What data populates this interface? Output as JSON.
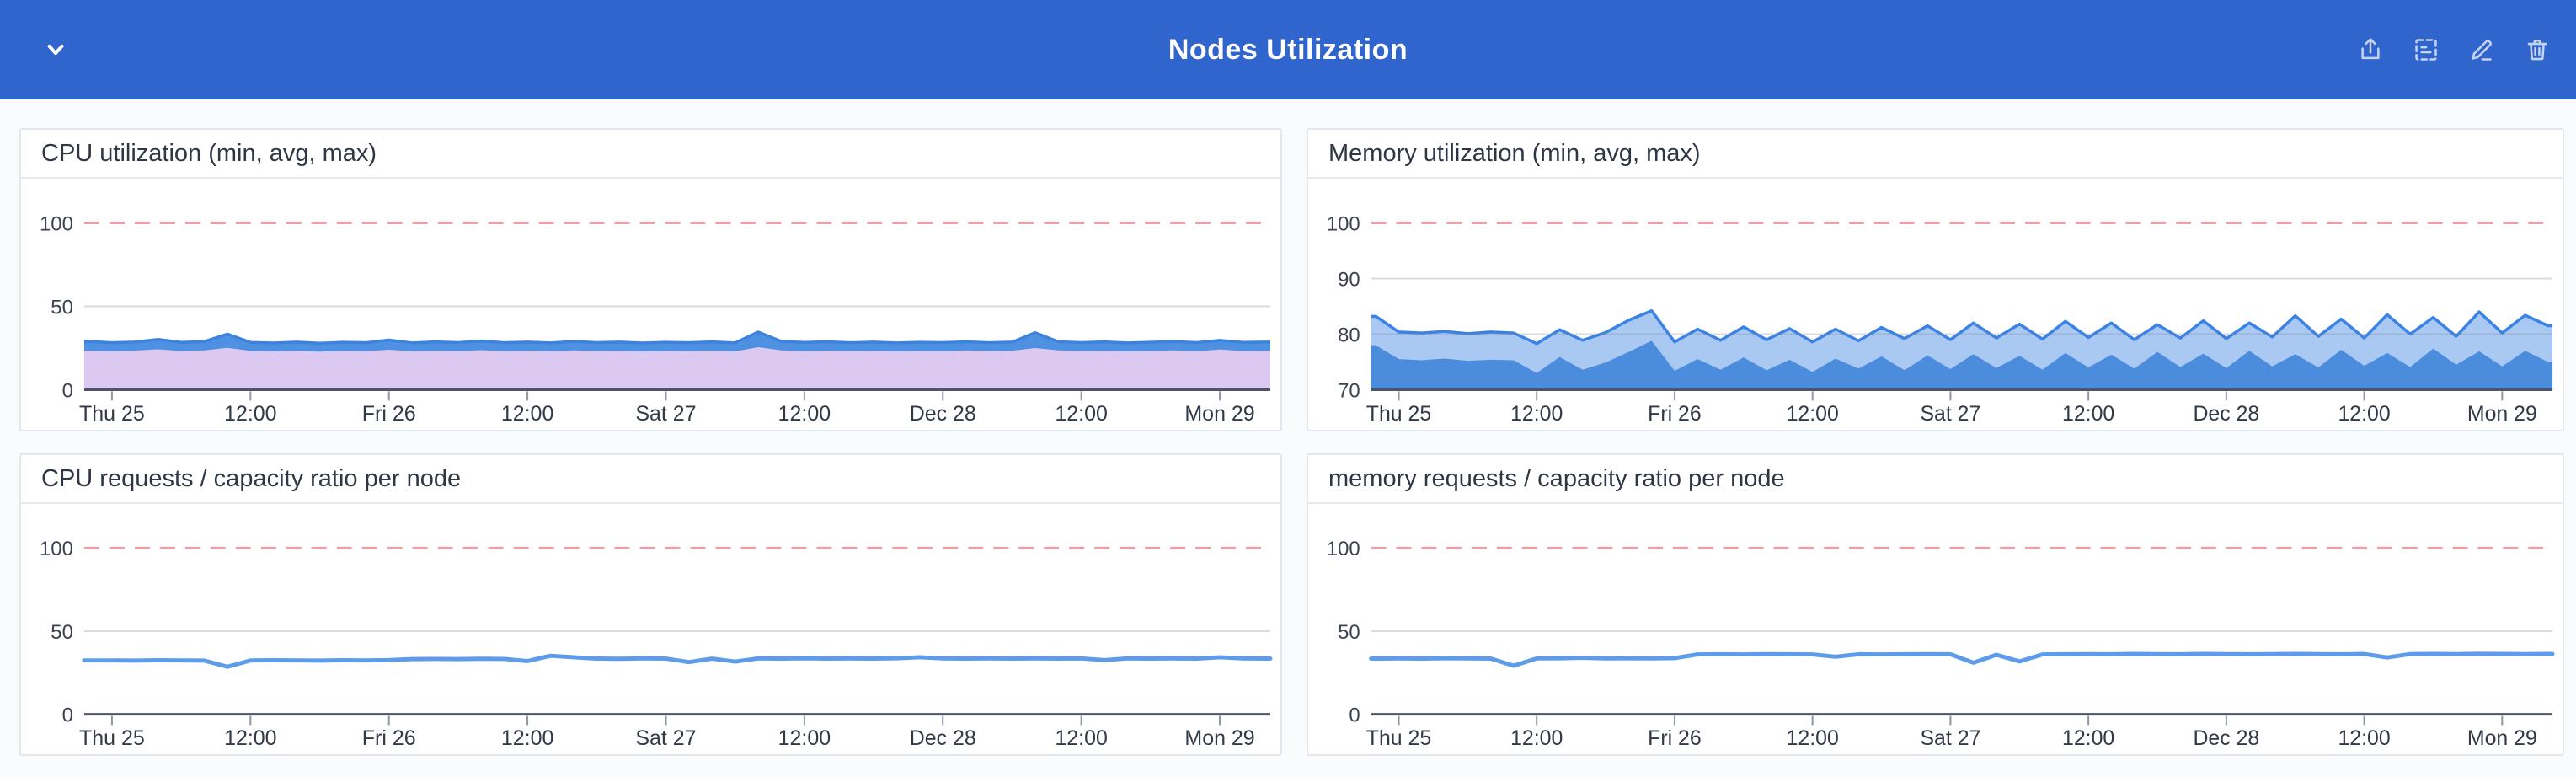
{
  "page": {
    "background": "#fafbfd"
  },
  "header": {
    "title": "Nodes Utilization",
    "background": "#3065cd",
    "icon_color": "#c6d2ee",
    "collapse_icon": "chevron-down-icon",
    "action_icons": [
      "share-icon",
      "card-view-icon",
      "edit-icon",
      "trash-icon"
    ]
  },
  "chart_data": {
    "x_hours": [
      -2,
      0,
      2,
      4,
      6,
      8,
      10,
      12,
      14,
      16,
      18,
      20,
      22,
      24,
      26,
      28,
      30,
      32,
      34,
      36,
      38,
      40,
      42,
      44,
      46,
      48,
      50,
      52,
      54,
      56,
      58,
      60,
      62,
      64,
      66,
      68,
      70,
      72,
      74,
      76,
      78,
      80,
      82,
      84,
      86,
      88,
      90,
      92,
      94,
      96,
      98,
      100
    ],
    "x_tick_labels": [
      "Thu 25",
      "12:00",
      "Fri 26",
      "12:00",
      "Sat 27",
      "12:00",
      "Dec 28",
      "12:00",
      "Mon 29"
    ],
    "x_tick_hours": [
      0,
      12,
      24,
      36,
      48,
      60,
      72,
      84,
      96
    ],
    "charts": [
      {
        "type": "area",
        "title": "CPU utilization (min, avg, max)",
        "y_min": 0,
        "y_max": 100,
        "y_tick_labels": [
          0,
          50,
          100
        ],
        "grid_ticks": [
          50
        ],
        "threshold": 100,
        "threshold_color": "#ef9ea8",
        "colors": {
          "band_fill": "#4e91e3",
          "band_stroke": "#3c83de",
          "min_fill": "#dcc9f2"
        },
        "series": [
          {
            "name": "min",
            "values": [
              23.4,
              23.1,
              23.5,
              24.2,
              23.2,
              23.6,
              25.1,
              23.3,
              23.0,
              23.4,
              22.8,
              23.3,
              23.1,
              24.0,
              23.0,
              23.4,
              23.2,
              23.7,
              23.1,
              23.5,
              23.0,
              23.6,
              23.2,
              23.4,
              22.9,
              23.3,
              23.1,
              23.5,
              23.0,
              25.5,
              23.6,
              23.1,
              23.5,
              23.2,
              23.4,
              23.0,
              23.3,
              23.1,
              23.6,
              23.2,
              23.4,
              25.0,
              23.6,
              23.2,
              23.4,
              23.0,
              23.3,
              23.6,
              23.1,
              24.1,
              23.2,
              23.4
            ]
          },
          {
            "name": "avg",
            "values": [
              26.2,
              25.7,
              26.1,
              27.2,
              25.8,
              26.3,
              29.3,
              25.9,
              25.5,
              26.0,
              25.4,
              25.9,
              25.7,
              26.9,
              25.6,
              26.1,
              25.8,
              26.5,
              25.7,
              26.1,
              25.6,
              26.3,
              25.8,
              26.0,
              25.5,
              25.9,
              25.7,
              26.1,
              25.6,
              30.1,
              26.3,
              25.8,
              26.2,
              25.7,
              26.0,
              25.6,
              25.9,
              25.7,
              26.2,
              25.7,
              26.0,
              29.6,
              26.2,
              25.8,
              26.1,
              25.6,
              25.9,
              26.3,
              25.7,
              26.9,
              25.8,
              26.0
            ]
          },
          {
            "name": "max",
            "values": [
              29.0,
              28.2,
              28.6,
              30.2,
              28.4,
              28.9,
              33.4,
              28.4,
              28.0,
              28.6,
              27.9,
              28.5,
              28.2,
              29.8,
              28.1,
              28.7,
              28.3,
              29.2,
              28.2,
              28.6,
              28.1,
              29.0,
              28.3,
              28.6,
              28.0,
              28.5,
              28.2,
              28.7,
              28.1,
              34.6,
              29.0,
              28.4,
              28.8,
              28.2,
              28.6,
              28.1,
              28.5,
              28.3,
              28.8,
              28.2,
              28.6,
              34.2,
              28.8,
              28.3,
              28.7,
              28.1,
              28.5,
              28.9,
              28.3,
              29.6,
              28.4,
              28.6
            ]
          }
        ]
      },
      {
        "type": "area",
        "title": "Memory utilization (min, avg, max)",
        "y_min": 70,
        "y_max": 100,
        "y_tick_labels": [
          70,
          80,
          90,
          100
        ],
        "grid_ticks": [
          80,
          90
        ],
        "threshold": 100,
        "threshold_color": "#ef9ea8",
        "colors": {
          "band_fill": "#a9c9f3",
          "band_stroke": "#3a82e6",
          "min_fill": "#4c8cdc"
        },
        "series": [
          {
            "name": "min",
            "values": [
              78.0,
              75.5,
              75.3,
              75.6,
              75.2,
              75.4,
              75.3,
              73.0,
              75.9,
              73.6,
              74.9,
              76.8,
              78.8,
              73.4,
              75.5,
              73.6,
              75.8,
              73.5,
              75.4,
              73.2,
              75.6,
              73.8,
              76.0,
              73.5,
              76.2,
              73.7,
              76.4,
              73.9,
              76.1,
              73.6,
              76.6,
              74.0,
              76.3,
              73.8,
              76.8,
              74.1,
              76.5,
              73.9,
              77.0,
              74.2,
              76.4,
              74.0,
              77.2,
              74.3,
              76.6,
              74.1,
              77.4,
              74.5,
              76.9,
              74.2,
              77.0,
              75.0
            ]
          },
          {
            "name": "avg",
            "values": [
              80.6,
              78.0,
              77.8,
              78.1,
              77.7,
              77.9,
              77.8,
              75.7,
              78.4,
              76.3,
              77.6,
              79.7,
              81.5,
              76.0,
              78.2,
              76.3,
              78.6,
              76.3,
              78.2,
              75.9,
              78.3,
              76.3,
              78.6,
              76.4,
              78.9,
              76.4,
              79.2,
              76.6,
              79.0,
              76.4,
              79.5,
              76.7,
              79.2,
              76.4,
              79.3,
              76.7,
              79.5,
              76.6,
              79.5,
              76.9,
              79.9,
              76.8,
              80.0,
              76.8,
              80.1,
              77.1,
              80.2,
              77.1,
              80.5,
              77.2,
              80.2,
              78.3
            ]
          },
          {
            "name": "max",
            "values": [
              83.2,
              80.4,
              80.2,
              80.5,
              80.1,
              80.4,
              80.2,
              78.3,
              80.8,
              78.9,
              80.3,
              82.5,
              84.2,
              78.6,
              80.9,
              78.9,
              81.3,
              79.0,
              81.0,
              78.6,
              80.9,
              78.8,
              81.2,
              79.2,
              81.5,
              79.0,
              82.0,
              79.3,
              81.8,
              79.1,
              82.3,
              79.4,
              82.0,
              79.0,
              81.7,
              79.3,
              82.4,
              79.2,
              82.0,
              79.5,
              83.3,
              79.6,
              82.7,
              79.3,
              83.5,
              80.0,
              83.0,
              79.6,
              84.0,
              80.2,
              83.4,
              81.5
            ]
          }
        ]
      },
      {
        "type": "line",
        "title": "CPU requests / capacity ratio per node",
        "y_min": 0,
        "y_max": 100,
        "y_tick_labels": [
          0,
          50,
          100
        ],
        "grid_ticks": [
          50
        ],
        "threshold": 100,
        "threshold_color": "#ef9ea8",
        "colors": {
          "line": "#5e9ce9"
        },
        "series": [
          {
            "name": "ratio",
            "values": [
              32.4,
              32.4,
              32.3,
              32.5,
              32.4,
              32.3,
              28.6,
              32.4,
              32.5,
              32.4,
              32.3,
              32.5,
              32.4,
              32.6,
              33.2,
              33.3,
              33.2,
              33.4,
              33.3,
              32.0,
              35.2,
              34.3,
              33.5,
              33.4,
              33.6,
              33.5,
              31.4,
              33.5,
              31.7,
              33.6,
              33.5,
              33.7,
              33.5,
              33.6,
              33.5,
              33.7,
              34.3,
              33.6,
              33.5,
              33.6,
              33.5,
              33.6,
              33.5,
              33.6,
              32.6,
              33.6,
              33.5,
              33.6,
              33.5,
              34.3,
              33.6,
              33.5
            ]
          }
        ]
      },
      {
        "type": "line",
        "title": "memory requests / capacity ratio per node",
        "y_min": 0,
        "y_max": 100,
        "y_tick_labels": [
          0,
          50,
          100
        ],
        "grid_ticks": [
          50
        ],
        "threshold": 100,
        "threshold_color": "#ef9ea8",
        "colors": {
          "line": "#5e9ce9"
        },
        "series": [
          {
            "name": "ratio",
            "values": [
              33.5,
              33.6,
              33.5,
              33.7,
              33.6,
              33.5,
              29.2,
              33.6,
              33.7,
              34.0,
              33.6,
              33.7,
              33.6,
              33.8,
              36.0,
              36.1,
              36.0,
              36.2,
              36.1,
              36.0,
              34.6,
              36.1,
              36.0,
              36.1,
              36.2,
              36.1,
              31.0,
              35.8,
              31.8,
              36.0,
              36.1,
              36.2,
              36.1,
              36.3,
              36.2,
              36.1,
              36.3,
              36.2,
              36.1,
              36.2,
              36.3,
              36.2,
              36.1,
              36.3,
              34.2,
              36.2,
              36.3,
              36.2,
              36.4,
              36.3,
              36.2,
              36.3
            ]
          }
        ]
      }
    ]
  }
}
